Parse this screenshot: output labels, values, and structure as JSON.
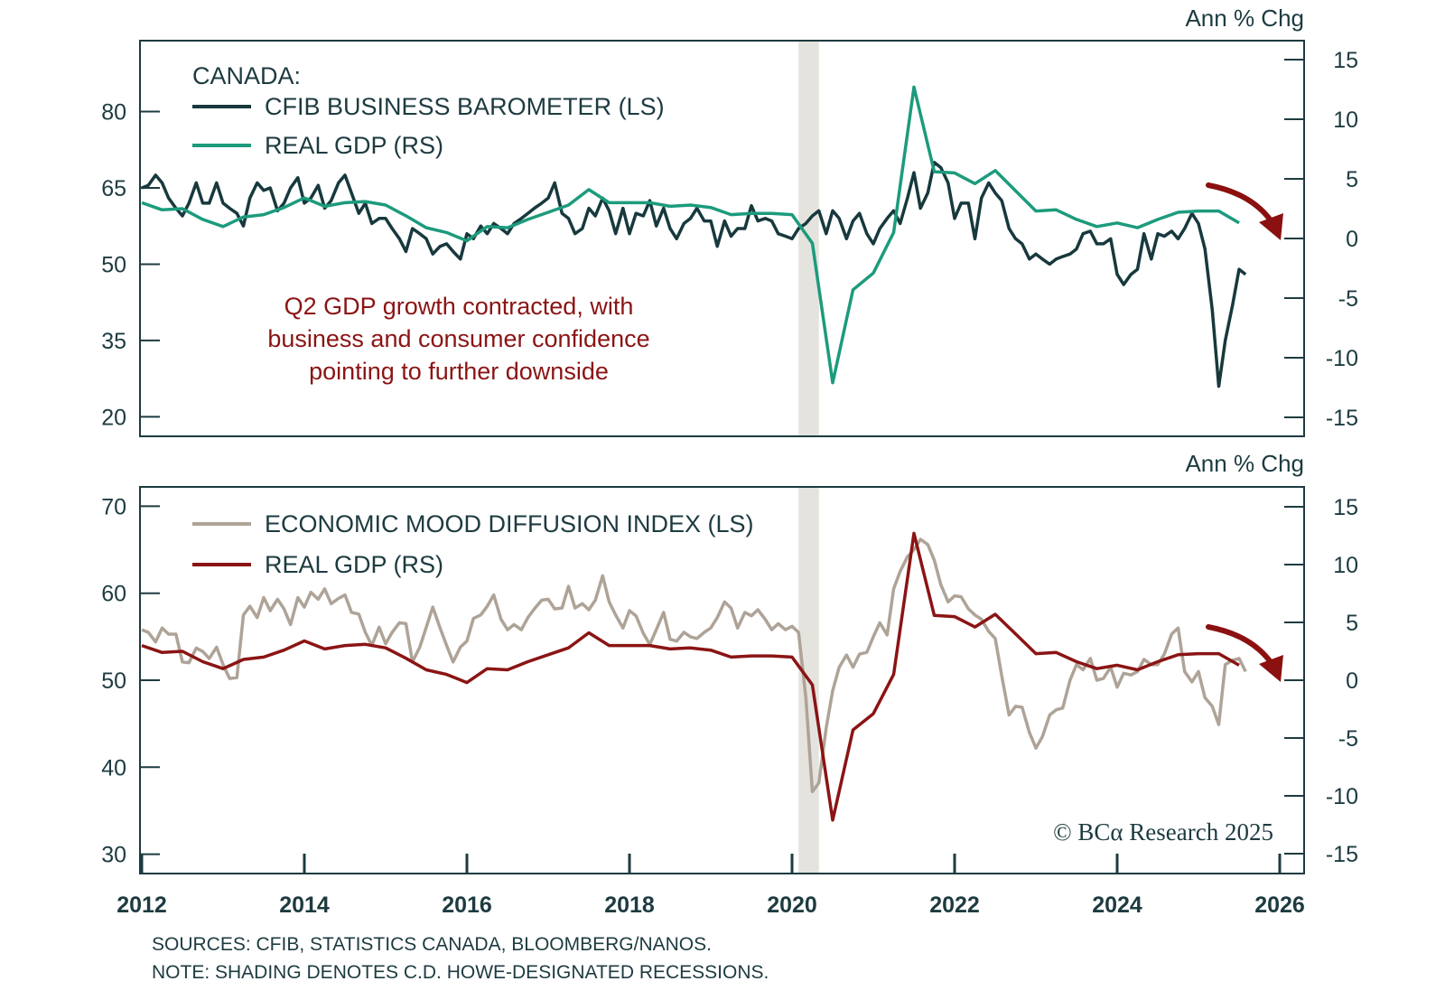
{
  "chart_data": [
    {
      "type": "line",
      "panel": "top",
      "legend_title": "CANADA:",
      "right_axis_unit": "Ann % Chg",
      "left_axis": {
        "ticks": [
          20,
          35,
          50,
          65,
          80
        ],
        "range": [
          17,
          95
        ]
      },
      "right_axis": {
        "ticks": [
          -15,
          -10,
          -5,
          0,
          5,
          10,
          15
        ],
        "range": [
          -16.5,
          16.5
        ]
      },
      "legend_placement": "top-left",
      "annotation": [
        "Q2 GDP growth contracted, with",
        "business and consumer confidence",
        "pointing to further downside"
      ],
      "series": [
        {
          "name": "CFIB BUSINESS BAROMETER (LS)",
          "axis": "left",
          "color": "#17393d",
          "x": [
            2012.0,
            2012.08,
            2012.17,
            2012.25,
            2012.33,
            2012.42,
            2012.5,
            2012.58,
            2012.67,
            2012.75,
            2012.83,
            2012.92,
            2013.0,
            2013.08,
            2013.17,
            2013.25,
            2013.33,
            2013.42,
            2013.5,
            2013.58,
            2013.67,
            2013.75,
            2013.83,
            2013.92,
            2014.0,
            2014.08,
            2014.17,
            2014.25,
            2014.33,
            2014.42,
            2014.5,
            2014.58,
            2014.67,
            2014.75,
            2014.83,
            2014.92,
            2015.0,
            2015.08,
            2015.17,
            2015.25,
            2015.33,
            2015.42,
            2015.5,
            2015.58,
            2015.67,
            2015.75,
            2015.83,
            2015.92,
            2016.0,
            2016.08,
            2016.17,
            2016.25,
            2016.33,
            2016.42,
            2016.5,
            2016.58,
            2016.67,
            2016.75,
            2016.83,
            2016.92,
            2017.0,
            2017.08,
            2017.17,
            2017.25,
            2017.33,
            2017.42,
            2017.5,
            2017.58,
            2017.67,
            2017.75,
            2017.83,
            2017.92,
            2018.0,
            2018.08,
            2018.17,
            2018.25,
            2018.33,
            2018.42,
            2018.5,
            2018.58,
            2018.67,
            2018.75,
            2018.83,
            2018.92,
            2019.0,
            2019.08,
            2019.17,
            2019.25,
            2019.33,
            2019.42,
            2019.5,
            2019.58,
            2019.67,
            2019.75,
            2019.83,
            2019.92,
            2020.0,
            2020.08,
            2020.17,
            2020.25,
            2020.33,
            2020.42,
            2020.5,
            2020.58,
            2020.67,
            2020.75,
            2020.83,
            2020.92,
            2021.0,
            2021.08,
            2021.17,
            2021.25,
            2021.33,
            2021.42,
            2021.5,
            2021.58,
            2021.67,
            2021.75,
            2021.83,
            2021.92,
            2022.0,
            2022.08,
            2022.17,
            2022.25,
            2022.33,
            2022.42,
            2022.5,
            2022.58,
            2022.67,
            2022.75,
            2022.83,
            2022.92,
            2023.0,
            2023.08,
            2023.17,
            2023.25,
            2023.33,
            2023.42,
            2023.5,
            2023.58,
            2023.67,
            2023.75,
            2023.83,
            2023.92,
            2024.0,
            2024.08,
            2024.17,
            2024.25,
            2024.33,
            2024.42,
            2024.5,
            2024.58,
            2024.67,
            2024.75,
            2024.83,
            2024.92,
            2025.0,
            2025.08,
            2025.17,
            2025.25,
            2025.33,
            2025.42,
            2025.5,
            2025.58
          ],
          "values": [
            65,
            65.5,
            67.5,
            66,
            63,
            61,
            59.5,
            62,
            66,
            62,
            62,
            66,
            62,
            61,
            60,
            57.5,
            63,
            66,
            64.5,
            65,
            60.5,
            62,
            65,
            67,
            62,
            63,
            65.5,
            61,
            62.5,
            66,
            67.5,
            64,
            60,
            62,
            58,
            59,
            59,
            57,
            55,
            52.5,
            57,
            56,
            55,
            52,
            53.5,
            54,
            52.5,
            51,
            56,
            55,
            57.5,
            56,
            58,
            57,
            56,
            58,
            59,
            60,
            61,
            62,
            63,
            66,
            60,
            59,
            56,
            57,
            61,
            59.5,
            63,
            60.5,
            56,
            61,
            56,
            60,
            59.5,
            62.5,
            57.5,
            61,
            57,
            55,
            58,
            59,
            61,
            58.5,
            58.5,
            53.5,
            58.5,
            55.5,
            57,
            57,
            61.5,
            58.5,
            59,
            58.5,
            56,
            55.5,
            55,
            57,
            58,
            59.5,
            60.5,
            56,
            60.5,
            59,
            55,
            58.5,
            60,
            56,
            54,
            57,
            59,
            60.5,
            58,
            63,
            68,
            61,
            64,
            70,
            69,
            66,
            59,
            62,
            62,
            55,
            63,
            66,
            64,
            62.5,
            57,
            55,
            54,
            51,
            52,
            51,
            50,
            51,
            51.5,
            52,
            53,
            56,
            56.5,
            54,
            54,
            55,
            48,
            46,
            48,
            49,
            56,
            51,
            56,
            55.5,
            56.5,
            55,
            57,
            60,
            58,
            53,
            41,
            26,
            35,
            42,
            49,
            48
          ],
          "note": "values approximate, read from chart"
        },
        {
          "name": "REAL GDP (RS)",
          "axis": "right",
          "color": "#1c9b7c",
          "x": [
            2012.0,
            2012.25,
            2012.5,
            2012.75,
            2013.0,
            2013.25,
            2013.5,
            2013.75,
            2014.0,
            2014.25,
            2014.5,
            2014.75,
            2015.0,
            2015.25,
            2015.5,
            2015.75,
            2016.0,
            2016.25,
            2016.5,
            2016.75,
            2017.0,
            2017.25,
            2017.5,
            2017.75,
            2018.0,
            2018.25,
            2018.5,
            2018.75,
            2019.0,
            2019.25,
            2019.5,
            2019.75,
            2020.0,
            2020.25,
            2020.5,
            2020.75,
            2021.0,
            2021.25,
            2021.5,
            2021.75,
            2022.0,
            2022.25,
            2022.5,
            2022.75,
            2023.0,
            2023.25,
            2023.5,
            2023.75,
            2024.0,
            2024.25,
            2024.5,
            2024.75,
            2025.0,
            2025.25,
            2025.5
          ],
          "values": [
            3.0,
            2.4,
            2.5,
            1.6,
            1.0,
            1.8,
            2.0,
            2.6,
            3.4,
            2.7,
            3.0,
            3.1,
            2.8,
            1.9,
            0.9,
            0.5,
            -0.2,
            1.0,
            0.9,
            1.6,
            2.2,
            2.8,
            4.1,
            3.0,
            3.0,
            3.0,
            2.7,
            2.8,
            2.6,
            2.0,
            2.1,
            2.1,
            2.0,
            -0.4,
            -12.1,
            -4.3,
            -2.9,
            0.5,
            12.7,
            5.6,
            5.5,
            4.6,
            5.7,
            4.0,
            2.3,
            2.4,
            1.6,
            1.0,
            1.3,
            0.9,
            1.6,
            2.2,
            2.3,
            2.3,
            1.3
          ]
        }
      ]
    },
    {
      "type": "line",
      "panel": "bottom",
      "right_axis_unit": "Ann % Chg",
      "left_axis": {
        "ticks": [
          30,
          40,
          50,
          60,
          70
        ],
        "range": [
          27.8,
          72.2
        ]
      },
      "right_axis": {
        "ticks": [
          -15,
          -10,
          -5,
          0,
          5,
          10,
          15
        ],
        "range": [
          -16.7,
          17.0
        ]
      },
      "legend_placement": "top-left",
      "series": [
        {
          "name": "ECONOMIC MOOD DIFFUSION INDEX (LS)",
          "axis": "left",
          "color": "#aea397",
          "x": [
            2012.0,
            2012.08,
            2012.17,
            2012.25,
            2012.33,
            2012.42,
            2012.5,
            2012.58,
            2012.67,
            2012.75,
            2012.83,
            2012.92,
            2013.0,
            2013.08,
            2013.17,
            2013.25,
            2013.33,
            2013.42,
            2013.5,
            2013.58,
            2013.67,
            2013.75,
            2013.83,
            2013.92,
            2014.0,
            2014.08,
            2014.17,
            2014.25,
            2014.33,
            2014.42,
            2014.5,
            2014.58,
            2014.67,
            2014.75,
            2014.83,
            2014.92,
            2015.0,
            2015.08,
            2015.17,
            2015.25,
            2015.33,
            2015.42,
            2015.5,
            2015.58,
            2015.67,
            2015.75,
            2015.83,
            2015.92,
            2016.0,
            2016.08,
            2016.17,
            2016.25,
            2016.33,
            2016.42,
            2016.5,
            2016.58,
            2016.67,
            2016.75,
            2016.83,
            2016.92,
            2017.0,
            2017.08,
            2017.17,
            2017.25,
            2017.33,
            2017.42,
            2017.5,
            2017.58,
            2017.67,
            2017.75,
            2017.83,
            2017.92,
            2018.0,
            2018.08,
            2018.17,
            2018.25,
            2018.33,
            2018.42,
            2018.5,
            2018.58,
            2018.67,
            2018.75,
            2018.83,
            2018.92,
            2019.0,
            2019.08,
            2019.17,
            2019.25,
            2019.33,
            2019.42,
            2019.5,
            2019.58,
            2019.67,
            2019.75,
            2019.83,
            2019.92,
            2020.0,
            2020.08,
            2020.17,
            2020.25,
            2020.33,
            2020.42,
            2020.5,
            2020.58,
            2020.67,
            2020.75,
            2020.83,
            2020.92,
            2021.0,
            2021.08,
            2021.17,
            2021.25,
            2021.33,
            2021.42,
            2021.5,
            2021.58,
            2021.67,
            2021.75,
            2021.83,
            2021.92,
            2022.0,
            2022.08,
            2022.17,
            2022.25,
            2022.33,
            2022.42,
            2022.5,
            2022.58,
            2022.67,
            2022.75,
            2022.83,
            2022.92,
            2023.0,
            2023.08,
            2023.17,
            2023.25,
            2023.33,
            2023.42,
            2023.5,
            2023.58,
            2023.67,
            2023.75,
            2023.83,
            2023.92,
            2024.0,
            2024.08,
            2024.17,
            2024.25,
            2024.33,
            2024.42,
            2024.5,
            2024.58,
            2024.67,
            2024.75,
            2024.83,
            2024.92,
            2025.0,
            2025.08,
            2025.17,
            2025.25,
            2025.33,
            2025.42,
            2025.5,
            2025.58
          ],
          "values": [
            55.8,
            55.5,
            54.4,
            56.0,
            55.3,
            55.3,
            52.1,
            52.0,
            53.7,
            53.3,
            52.5,
            53.8,
            51.8,
            50.2,
            50.3,
            57.5,
            58.5,
            57.2,
            59.5,
            58.0,
            59.3,
            58.2,
            56.4,
            59.5,
            58.4,
            60.1,
            59.3,
            60.5,
            58.8,
            59.4,
            59.8,
            57.8,
            57.6,
            55.5,
            54.0,
            56.1,
            54.2,
            55.5,
            56.6,
            56.5,
            52.1,
            53.8,
            56.1,
            58.4,
            56.0,
            54.0,
            52.1,
            53.8,
            54.5,
            57.1,
            57.5,
            58.5,
            59.8,
            57.0,
            55.8,
            56.4,
            55.8,
            57.2,
            58.2,
            59.2,
            59.3,
            58.2,
            58.3,
            60.8,
            58.3,
            58.8,
            58.1,
            59.2,
            62.0,
            59.0,
            57.5,
            56.0,
            58.0,
            57.4,
            55.4,
            54.1,
            55.8,
            57.8,
            54.7,
            54.5,
            55.5,
            55.0,
            54.8,
            55.5,
            56.0,
            57.2,
            59.0,
            58.3,
            56.0,
            57.8,
            57.4,
            58.1,
            57.0,
            55.8,
            56.5,
            55.8,
            56.2,
            55.5,
            48.0,
            37.2,
            38.2,
            44.5,
            48.8,
            51.5,
            52.9,
            51.5,
            53.0,
            53.2,
            55.0,
            56.6,
            55.2,
            60.5,
            62.5,
            64.2,
            65.0,
            66.2,
            65.6,
            63.8,
            61.0,
            59.0,
            59.7,
            59.6,
            58.2,
            57.5,
            57.0,
            55.6,
            54.8,
            50.5,
            46.0,
            47.0,
            46.9,
            44.0,
            42.2,
            43.5,
            46.0,
            46.6,
            46.8,
            50.0,
            51.8,
            51.2,
            52.5,
            50.0,
            50.2,
            51.5,
            49.2,
            50.8,
            50.6,
            51.0,
            52.4,
            51.8,
            51.8,
            53.0,
            55.3,
            56.0,
            51.0,
            49.8,
            51.0,
            48.0,
            47.0,
            44.9,
            51.8,
            52.3,
            52.5,
            51.0
          ],
          "note": "values approximate, read from chart"
        },
        {
          "name": "REAL GDP (RS)",
          "axis": "right",
          "color": "#8b1414",
          "x": [
            2012.0,
            2012.25,
            2012.5,
            2012.75,
            2013.0,
            2013.25,
            2013.5,
            2013.75,
            2014.0,
            2014.25,
            2014.5,
            2014.75,
            2015.0,
            2015.25,
            2015.5,
            2015.75,
            2016.0,
            2016.25,
            2016.5,
            2016.75,
            2017.0,
            2017.25,
            2017.5,
            2017.75,
            2018.0,
            2018.25,
            2018.5,
            2018.75,
            2019.0,
            2019.25,
            2019.5,
            2019.75,
            2020.0,
            2020.25,
            2020.5,
            2020.75,
            2021.0,
            2021.25,
            2021.5,
            2021.75,
            2022.0,
            2022.25,
            2022.5,
            2022.75,
            2023.0,
            2023.25,
            2023.5,
            2023.75,
            2024.0,
            2024.25,
            2024.5,
            2024.75,
            2025.0,
            2025.25,
            2025.5
          ],
          "values": [
            3.0,
            2.4,
            2.5,
            1.6,
            1.0,
            1.8,
            2.0,
            2.6,
            3.4,
            2.7,
            3.0,
            3.1,
            2.8,
            1.9,
            0.9,
            0.5,
            -0.2,
            1.0,
            0.9,
            1.6,
            2.2,
            2.8,
            4.1,
            3.0,
            3.0,
            3.0,
            2.7,
            2.8,
            2.6,
            2.0,
            2.1,
            2.1,
            2.0,
            -0.4,
            -12.1,
            -4.3,
            -2.9,
            0.5,
            12.7,
            5.6,
            5.5,
            4.6,
            5.7,
            4.0,
            2.3,
            2.4,
            1.6,
            1.0,
            1.3,
            0.9,
            1.6,
            2.2,
            2.3,
            2.3,
            1.3
          ]
        }
      ]
    }
  ],
  "x_axis": {
    "ticks": [
      2012,
      2014,
      2016,
      2018,
      2020,
      2022,
      2024,
      2026
    ],
    "tick_labels": [
      "2012",
      "2014",
      "2016",
      "2018",
      "2020",
      "2022",
      "2024",
      "2026"
    ],
    "range": [
      2012,
      2026.3
    ]
  },
  "recession_shading": [
    {
      "start": 2020.08,
      "end": 2020.33,
      "color": "#e4e3de"
    }
  ],
  "labels": {
    "top_unit": "Ann % Chg",
    "bottom_unit": "Ann % Chg",
    "top_legend_title": "CANADA:",
    "top_legend_1": "CFIB BUSINESS BAROMETER (LS)",
    "top_legend_2": "REAL GDP (RS)",
    "bottom_legend_1": "ECONOMIC MOOD DIFFUSION INDEX (LS)",
    "bottom_legend_2": "REAL GDP (RS)",
    "annotation_1": "Q2 GDP growth contracted, with",
    "annotation_2": "business and consumer confidence",
    "annotation_3": "pointing to further downside",
    "copyright": "© BCα Research 2025",
    "sources": "SOURCES: CFIB, STATISTICS CANADA, BLOOMBERG/NANOS.",
    "note": "NOTE: SHADING DENOTES C.D. HOWE-DESIGNATED RECESSIONS."
  },
  "colors": {
    "axis": "#1d3b40",
    "arrow": "#8b1010",
    "annotation": "#8b1414"
  }
}
